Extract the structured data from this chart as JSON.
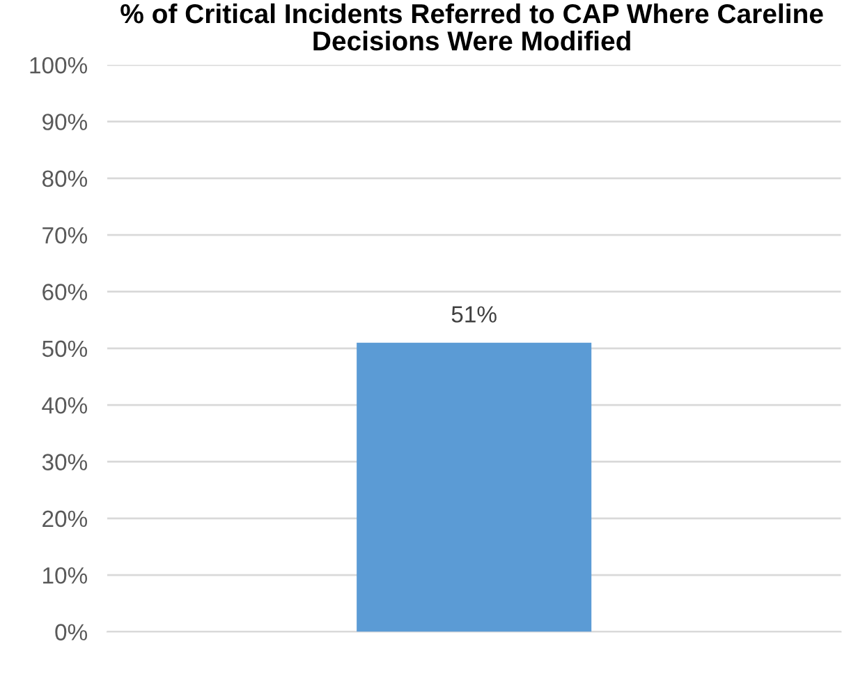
{
  "chart_data": {
    "type": "bar",
    "title": "% of Critical Incidents Referred to CAP Where Careline Decisions Were Modified",
    "categories": [
      null
    ],
    "values": [
      51
    ],
    "value_labels": [
      "51%"
    ],
    "color": "#5b9bd5",
    "ylim": [
      0,
      100
    ],
    "yticks": [
      {
        "value": 0,
        "label": "0%"
      },
      {
        "value": 10,
        "label": "10%"
      },
      {
        "value": 20,
        "label": "20%"
      },
      {
        "value": 30,
        "label": "30%"
      },
      {
        "value": 40,
        "label": "40%"
      },
      {
        "value": 50,
        "label": "50%"
      },
      {
        "value": 60,
        "label": "60%"
      },
      {
        "value": 70,
        "label": "70%"
      },
      {
        "value": 80,
        "label": "80%"
      },
      {
        "value": 90,
        "label": "90%"
      },
      {
        "value": 100,
        "label": "100%"
      }
    ],
    "grid": "y"
  }
}
